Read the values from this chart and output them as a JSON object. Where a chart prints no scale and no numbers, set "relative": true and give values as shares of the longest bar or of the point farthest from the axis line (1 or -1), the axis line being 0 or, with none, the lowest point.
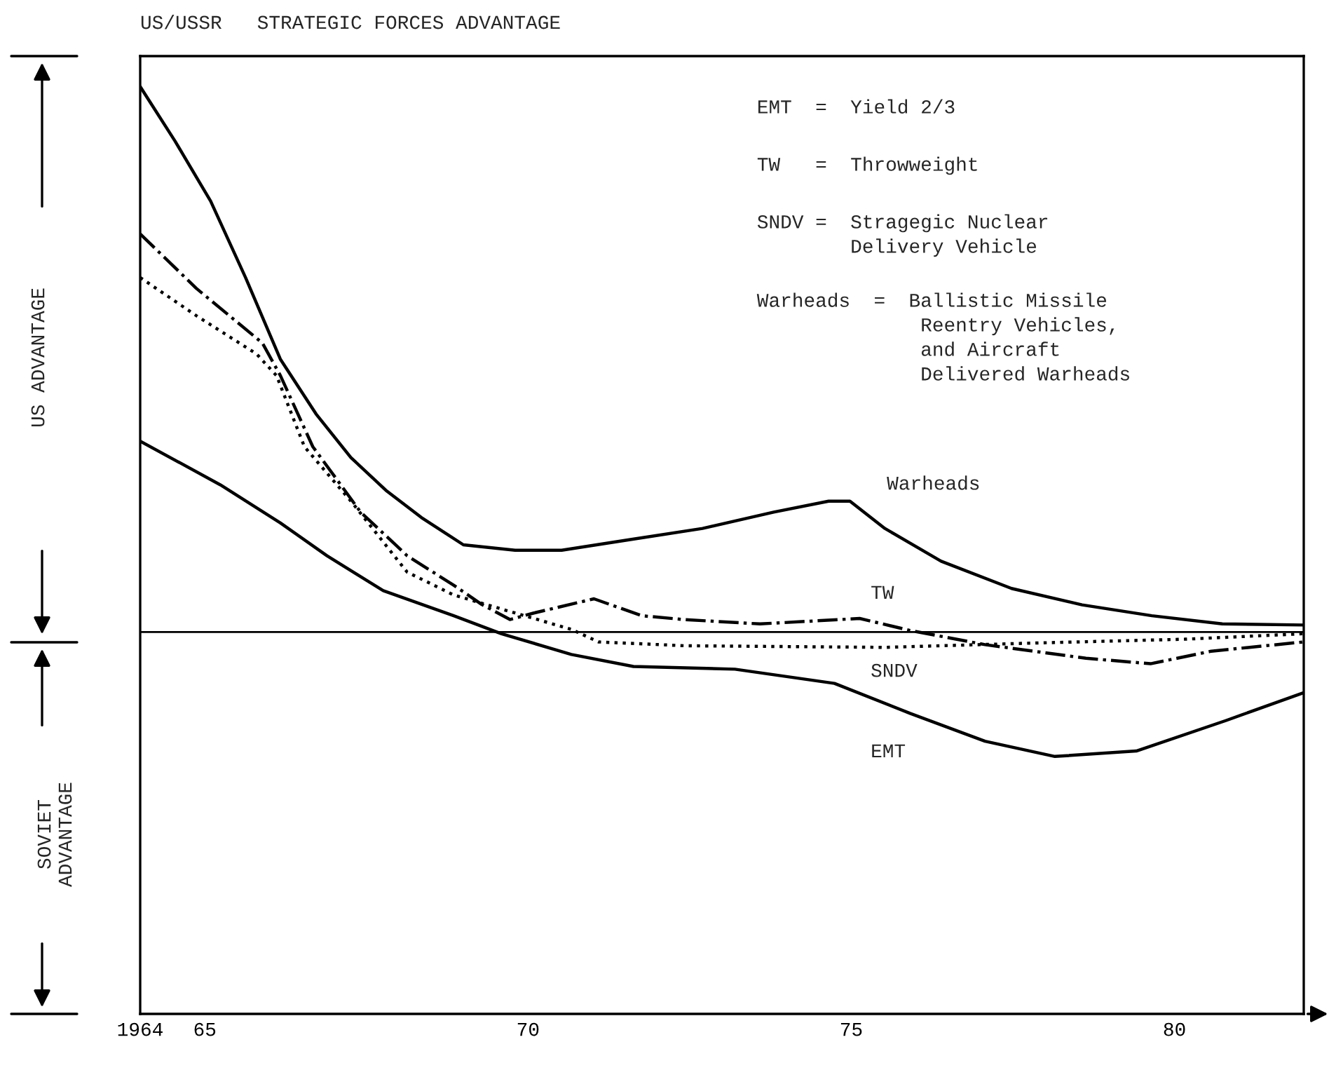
{
  "chart_data": {
    "type": "line",
    "title": "US/USSR   STRATEGIC FORCES ADVANTAGE",
    "relative": true,
    "grid": false,
    "legend": false,
    "marker": "none",
    "xlim": [
      1964,
      1982
    ],
    "xticks": [
      {
        "value": 1964,
        "label": "1964"
      },
      {
        "value": 1965,
        "label": "65"
      },
      {
        "value": 1970,
        "label": "70"
      },
      {
        "value": 1975,
        "label": "75"
      },
      {
        "value": 1980,
        "label": "80"
      }
    ],
    "ref_lines": [
      {
        "axis": "y",
        "value": 0,
        "color": "#000000",
        "line_style": "solid"
      }
    ],
    "annotations": [
      "US ADVANTAGE",
      "SOVIET\nADVANTAGE",
      "EMT  =  Yield 2/3",
      "TW   =  Throwweight",
      "SNDV =  Stragegic Nuclear\n        Delivery Vehicle",
      "Warheads  =  Ballistic Missile\n              Reentry Vehicles,\n              and Aircraft\n              Delivered Warheads"
    ],
    "series": [
      {
        "name": "Warheads",
        "color": "#000000",
        "line_style": "solid",
        "x": [
          1964.0,
          1964.54,
          1965.09,
          1965.63,
          1966.17,
          1966.72,
          1967.26,
          1967.8,
          1968.35,
          1969.0,
          1969.8,
          1970.52,
          1971.6,
          1972.7,
          1973.8,
          1974.65,
          1974.98,
          1975.52,
          1976.39,
          1977.48,
          1978.57,
          1979.65,
          1980.74,
          1982.0
        ],
        "values": [
          1.0,
          0.9,
          0.79,
          0.65,
          0.5,
          0.4,
          0.32,
          0.26,
          0.21,
          0.16,
          0.15,
          0.15,
          0.17,
          0.19,
          0.22,
          0.24,
          0.24,
          0.19,
          0.13,
          0.08,
          0.05,
          0.03,
          0.015,
          0.013
        ]
      },
      {
        "name": "TW",
        "color": "#000000",
        "line_style": "dashdot",
        "x": [
          1964.0,
          1964.87,
          1965.89,
          1966.17,
          1966.67,
          1967.41,
          1968.13,
          1968.85,
          1969.28,
          1969.72,
          1970.09,
          1971.02,
          1971.76,
          1972.41,
          1973.59,
          1975.13,
          1975.91,
          1977.07,
          1978.63,
          1979.63,
          1980.57,
          1982.0
        ],
        "values": [
          0.73,
          0.63,
          0.53,
          0.47,
          0.34,
          0.22,
          0.14,
          0.086,
          0.051,
          0.023,
          0.035,
          0.061,
          0.03,
          0.023,
          0.015,
          0.025,
          0.003,
          -0.023,
          -0.048,
          -0.058,
          -0.035,
          -0.018
        ]
      },
      {
        "name": "SNDV",
        "color": "#000000",
        "line_style": "dotted",
        "x": [
          1964.0,
          1964.87,
          1965.8,
          1966.11,
          1966.54,
          1967.26,
          1968.13,
          1968.85,
          1969.8,
          1970.67,
          1971.09,
          1972.41,
          1975.52,
          1977.85,
          1980.17,
          1982.0
        ],
        "values": [
          0.65,
          0.58,
          0.51,
          0.47,
          0.34,
          0.24,
          0.11,
          0.068,
          0.035,
          0.005,
          -0.018,
          -0.025,
          -0.028,
          -0.02,
          -0.013,
          -0.003
        ]
      },
      {
        "name": "EMT",
        "color": "#000000",
        "line_style": "solid",
        "x": [
          1964.0,
          1965.24,
          1966.17,
          1966.89,
          1967.76,
          1968.85,
          1969.59,
          1970.67,
          1971.63,
          1973.2,
          1974.74,
          1975.91,
          1977.07,
          1978.15,
          1979.41,
          1980.8,
          1982.0
        ],
        "values": [
          0.35,
          0.27,
          0.2,
          0.14,
          0.076,
          0.03,
          -0.003,
          -0.041,
          -0.063,
          -0.068,
          -0.094,
          -0.149,
          -0.2,
          -0.228,
          -0.218,
          -0.162,
          -0.111
        ]
      }
    ]
  }
}
